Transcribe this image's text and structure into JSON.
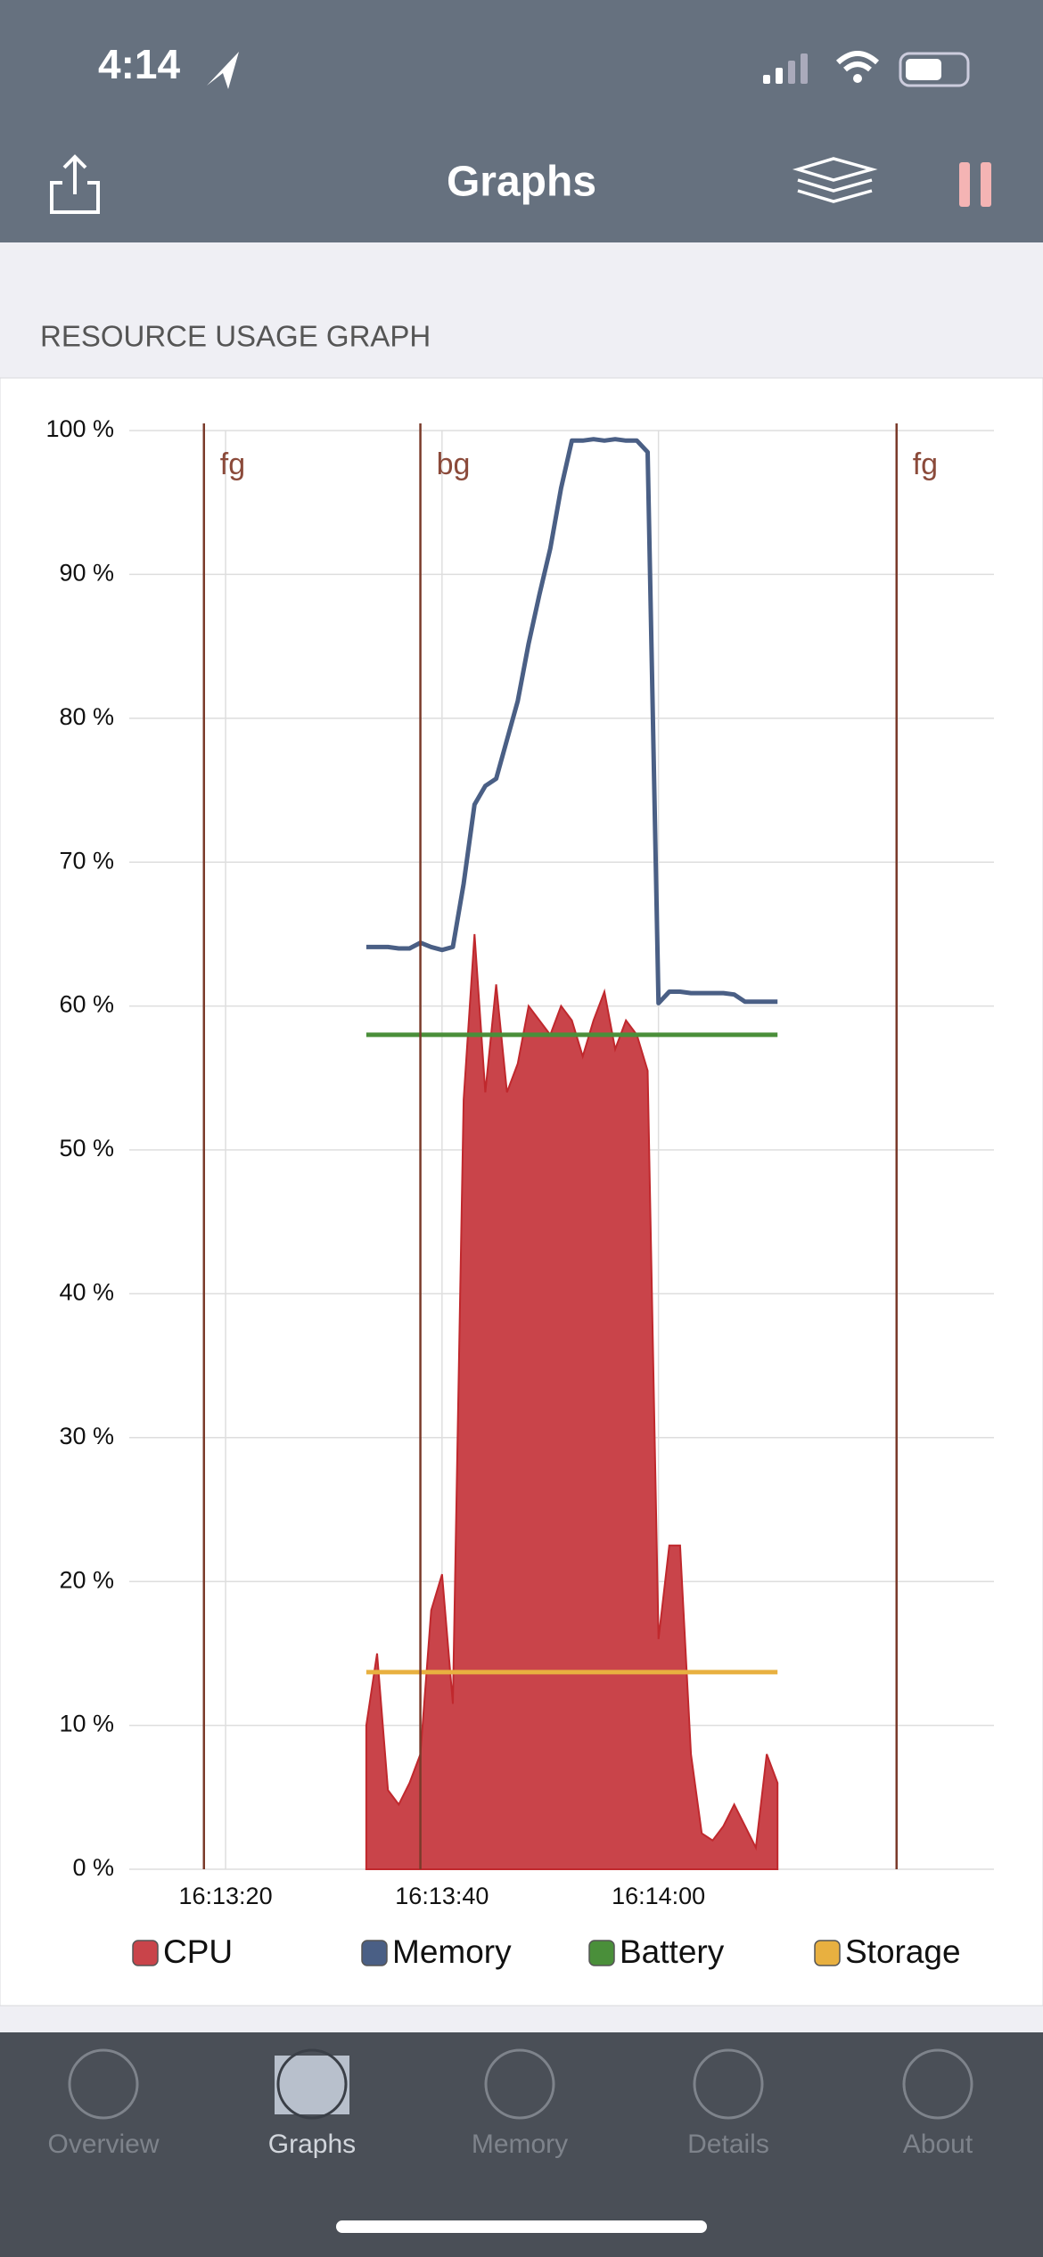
{
  "status_bar": {
    "time": "4:14"
  },
  "header": {
    "title": "Graphs"
  },
  "section": {
    "title": "RESOURCE USAGE GRAPH"
  },
  "chart_data": {
    "type": "line",
    "x": [
      58413,
      58414,
      58415,
      58416,
      58417,
      58418,
      58419,
      58420,
      58421,
      58422,
      58423,
      58424,
      58425,
      58426,
      58427,
      58428,
      58429,
      58430,
      58431,
      58432,
      58433,
      58434,
      58435,
      58436,
      58437,
      58438,
      58439,
      58440,
      58441,
      58442,
      58443,
      58444,
      58445,
      58446,
      58447,
      58448,
      58449,
      58450,
      58451
    ],
    "series": [
      {
        "name": "CPU",
        "color": "#c9444a",
        "area": true,
        "values": [
          10,
          15,
          5.5,
          4.5,
          6,
          8,
          18,
          20.5,
          11.5,
          53.5,
          65,
          54,
          61.5,
          54,
          56,
          60,
          59,
          58,
          60,
          59,
          56.5,
          59,
          61,
          57,
          59,
          58,
          55.5,
          16,
          22.5,
          22.5,
          8,
          2.5,
          2,
          3,
          4.5,
          3,
          1.5,
          8,
          6
        ]
      },
      {
        "name": "Memory",
        "color": "#4a5f85",
        "area": false,
        "values": [
          64.1,
          64.1,
          64.1,
          64,
          64,
          64.4,
          64.1,
          63.9,
          64.1,
          68.5,
          74,
          75.3,
          75.8,
          78.5,
          81.2,
          85.2,
          88.6,
          91.8,
          96,
          99.3,
          99.3,
          99.4,
          99.3,
          99.4,
          99.3,
          99.3,
          98.5,
          60.2,
          61,
          61,
          60.9,
          60.9,
          60.9,
          60.9,
          60.8,
          60.3,
          60.3,
          60.3,
          60.3
        ]
      },
      {
        "name": "Battery",
        "color": "#4a8f3a",
        "area": false,
        "values": [
          58,
          58,
          58,
          58,
          58,
          58,
          58,
          58,
          58,
          58,
          58,
          58,
          58,
          58,
          58,
          58,
          58,
          58,
          58,
          58,
          58,
          58,
          58,
          58,
          58,
          58,
          58,
          58,
          58,
          58,
          58,
          58,
          58,
          58,
          58,
          58,
          58,
          58,
          58
        ]
      },
      {
        "name": "Storage",
        "color": "#e8b040",
        "area": false,
        "values": [
          13.7,
          13.7,
          13.7,
          13.7,
          13.7,
          13.7,
          13.7,
          13.7,
          13.7,
          13.7,
          13.7,
          13.7,
          13.7,
          13.7,
          13.7,
          13.7,
          13.7,
          13.7,
          13.7,
          13.7,
          13.7,
          13.7,
          13.7,
          13.7,
          13.7,
          13.7,
          13.7,
          13.7,
          13.7,
          13.7,
          13.7,
          13.7,
          13.7,
          13.7,
          13.7,
          13.7,
          13.7,
          13.7,
          13.7
        ]
      }
    ],
    "annotations": [
      {
        "x": 58398,
        "label": "fg"
      },
      {
        "x": 58418,
        "label": "bg"
      },
      {
        "x": 58462,
        "label": "fg"
      }
    ],
    "xlim": [
      58391.1,
      58471
    ],
    "xticks": [
      {
        "value": 58400,
        "label": "16:13:20"
      },
      {
        "value": 58420,
        "label": "16:13:40"
      },
      {
        "value": 58440,
        "label": "16:14:00"
      }
    ],
    "ylim": [
      0,
      100
    ],
    "yticks": [
      {
        "value": 0,
        "label": "0 %"
      },
      {
        "value": 10,
        "label": "10 %"
      },
      {
        "value": 20,
        "label": "20 %"
      },
      {
        "value": 30,
        "label": "30 %"
      },
      {
        "value": 40,
        "label": "40 %"
      },
      {
        "value": 50,
        "label": "50 %"
      },
      {
        "value": 60,
        "label": "60 %"
      },
      {
        "value": 70,
        "label": "70 %"
      },
      {
        "value": 80,
        "label": "80 %"
      },
      {
        "value": 90,
        "label": "90 %"
      },
      {
        "value": 100,
        "label": "100 %"
      }
    ],
    "grid": true
  },
  "tab_bar": {
    "items": [
      "Overview",
      "Graphs",
      "Memory",
      "Details",
      "About"
    ],
    "selected": 1
  }
}
